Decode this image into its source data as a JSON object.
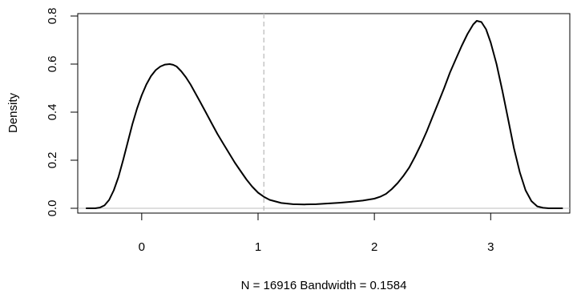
{
  "chart_data": {
    "type": "line",
    "title": "",
    "xlabel": "N = 16916   Bandwidth = 0.1584",
    "ylabel": "Density",
    "xlim": [
      -0.55,
      3.68
    ],
    "ylim": [
      -0.02,
      0.81
    ],
    "x_ticks": [
      0,
      1,
      2,
      3
    ],
    "y_ticks": [
      0.0,
      0.2,
      0.4,
      0.6,
      0.8
    ],
    "x_tick_labels": [
      "0",
      "1",
      "2",
      "3"
    ],
    "y_tick_labels": [
      "0.0",
      "0.2",
      "0.4",
      "0.6",
      "0.8"
    ],
    "grid": false,
    "legend": "none",
    "baseline": {
      "y": 0,
      "color": "#bebebe"
    },
    "reference_line": {
      "x": 1.05,
      "style": "dashed",
      "color": "#bebebe"
    },
    "series": [
      {
        "color": "#000000",
        "x": [
          -0.48,
          -0.4,
          -0.36,
          -0.32,
          -0.28,
          -0.24,
          -0.2,
          -0.16,
          -0.12,
          -0.08,
          -0.04,
          0.0,
          0.04,
          0.08,
          0.12,
          0.16,
          0.2,
          0.24,
          0.27,
          0.3,
          0.34,
          0.38,
          0.42,
          0.46,
          0.5,
          0.55,
          0.6,
          0.65,
          0.7,
          0.75,
          0.8,
          0.85,
          0.9,
          0.95,
          1.0,
          1.05,
          1.1,
          1.2,
          1.3,
          1.4,
          1.5,
          1.6,
          1.7,
          1.8,
          1.9,
          2.0,
          2.05,
          2.1,
          2.15,
          2.2,
          2.25,
          2.3,
          2.35,
          2.4,
          2.45,
          2.5,
          2.55,
          2.6,
          2.65,
          2.7,
          2.75,
          2.8,
          2.85,
          2.88,
          2.92,
          2.96,
          3.0,
          3.05,
          3.1,
          3.15,
          3.2,
          3.25,
          3.3,
          3.35,
          3.4,
          3.45,
          3.5,
          3.55,
          3.62
        ],
        "y": [
          0.0,
          0.0,
          0.003,
          0.012,
          0.035,
          0.075,
          0.13,
          0.2,
          0.275,
          0.35,
          0.415,
          0.47,
          0.515,
          0.55,
          0.575,
          0.59,
          0.598,
          0.6,
          0.597,
          0.59,
          0.57,
          0.545,
          0.515,
          0.48,
          0.445,
          0.4,
          0.355,
          0.31,
          0.27,
          0.23,
          0.19,
          0.155,
          0.12,
          0.09,
          0.065,
          0.048,
          0.035,
          0.022,
          0.017,
          0.016,
          0.017,
          0.02,
          0.023,
          0.027,
          0.032,
          0.04,
          0.048,
          0.06,
          0.08,
          0.105,
          0.135,
          0.17,
          0.215,
          0.265,
          0.32,
          0.38,
          0.44,
          0.5,
          0.565,
          0.62,
          0.675,
          0.725,
          0.765,
          0.78,
          0.775,
          0.745,
          0.69,
          0.6,
          0.49,
          0.37,
          0.25,
          0.15,
          0.075,
          0.03,
          0.008,
          0.002,
          0.0,
          0.0,
          0.0
        ]
      }
    ]
  }
}
